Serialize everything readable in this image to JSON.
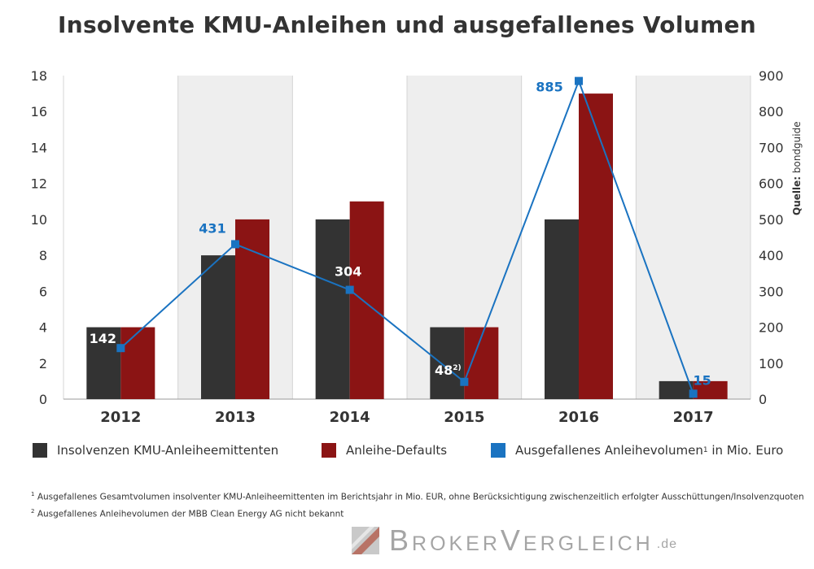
{
  "title": "Insolvente KMU-Anleihen und ausgefallenes Volumen",
  "chart_data": {
    "type": "bar",
    "categories": [
      "2012",
      "2013",
      "2014",
      "2015",
      "2016",
      "2017"
    ],
    "series": [
      {
        "name": "Insolvenzen KMU-Anleiheemittenten",
        "type": "bar",
        "axis": "left",
        "color": "#333333",
        "values": [
          4,
          8,
          10,
          4,
          10,
          1
        ]
      },
      {
        "name": "Anleihe-Defaults",
        "type": "bar",
        "axis": "left",
        "color": "#8b1414",
        "values": [
          4,
          10,
          11,
          4,
          17,
          1
        ]
      },
      {
        "name": "Ausgefallenes Anleihevolumen",
        "name_sup": "1",
        "name_suffix": " in Mio. Euro",
        "type": "line",
        "axis": "right",
        "color": "#1a73c1",
        "values": [
          142,
          431,
          304,
          48,
          885,
          15
        ]
      }
    ],
    "data_labels": [
      "142",
      "431",
      "304",
      "48",
      "885",
      "15"
    ],
    "data_label_sups": [
      "",
      "",
      "",
      "2)",
      "",
      ""
    ],
    "y_left": {
      "min": 0,
      "max": 18,
      "ticks": [
        "0",
        "2",
        "4",
        "6",
        "8",
        "10",
        "12",
        "14",
        "16",
        "18"
      ]
    },
    "y_right": {
      "min": 0,
      "max": 900,
      "ticks": [
        "0",
        "100",
        "200",
        "300",
        "400",
        "500",
        "600",
        "700",
        "800",
        "900"
      ]
    },
    "alternating_shaded_columns": true,
    "legend_position": "bottom"
  },
  "legend": [
    {
      "label": "Insolvenzen KMU-Anleiheemittenten",
      "color": "#333333"
    },
    {
      "label": "Anleihe-Defaults",
      "color": "#8b1414"
    },
    {
      "label": "Ausgefallenes Anleihevolumen",
      "sup": "1",
      "suffix": " in Mio. Euro",
      "color": "#1a73c1"
    }
  ],
  "source": {
    "label": "Quelle:",
    "value": "bondguide"
  },
  "footnotes": [
    {
      "mark": "1",
      "text": "Ausgefallenes Gesamtvolumen insolventer KMU-Anleiheemittenten im Berichtsjahr in Mio. EUR, ohne Berücksichtigung zwischenzeitlich erfolgter Ausschüttungen/Insolvenzquoten"
    },
    {
      "mark": "2",
      "text": "Ausgefallenes Anleihevolumen der MBB Clean Energy AG nicht bekannt"
    }
  ],
  "logo": {
    "text": "BrokerVergleich",
    "suffix": ".de"
  }
}
